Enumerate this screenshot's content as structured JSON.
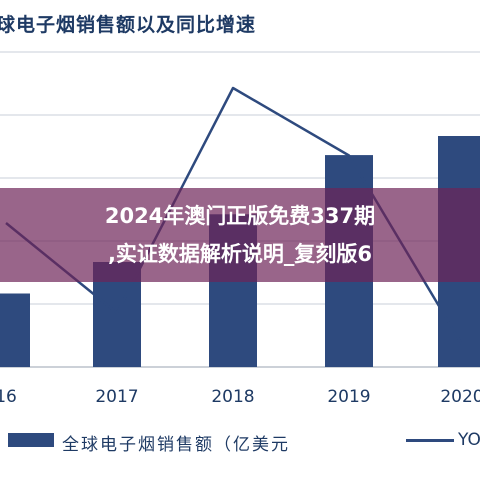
{
  "chart_data": {
    "type": "bar",
    "title": "球电子烟销售额以及同比增速",
    "categories": [
      "16",
      "2017",
      "2018",
      "2019",
      "2020"
    ],
    "series": [
      {
        "name": "全球电子烟销售额（亿美元",
        "type": "bar",
        "values": [
          77,
          110,
          160,
          222,
          242
        ]
      },
      {
        "name": "YO",
        "type": "line",
        "values": [
          32,
          12,
          62,
          47,
          5
        ]
      }
    ],
    "ylim": [
      0,
      330
    ],
    "grid": true,
    "legend": "bottom",
    "colors": {
      "bar": "#2e4a7e",
      "line": "#2e4a7e",
      "grid": "#c9cfd8",
      "text": "#1e3a64",
      "overlay": "#6e2458"
    }
  },
  "overlay": {
    "line1": "2024年澳门正版免费337期",
    "line2": ",实证数据解析说明_复刻版6"
  }
}
